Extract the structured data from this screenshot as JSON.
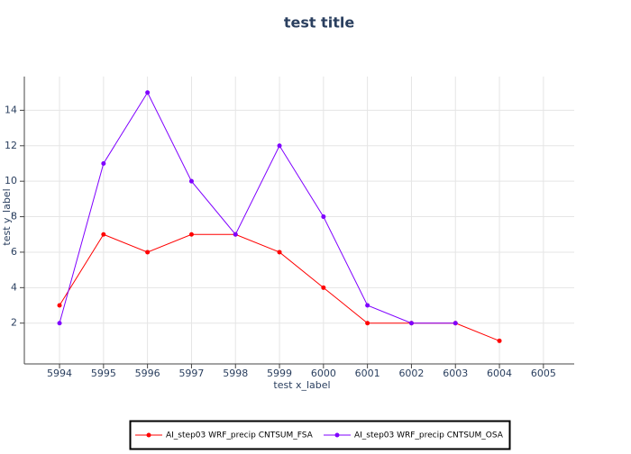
{
  "chart_data": {
    "type": "line",
    "title": "test title",
    "x_label": "test x_label",
    "y_label": "test y_label",
    "x": [
      5994,
      5995,
      5996,
      5997,
      5998,
      5999,
      6000,
      6001,
      6002,
      6003,
      6004
    ],
    "series": [
      {
        "name": "AI_step03 WRF_precip CNTSUM_FSA",
        "color": "#ff0000",
        "values": [
          3,
          7,
          6,
          7,
          7,
          6,
          4,
          2,
          2,
          2,
          1
        ]
      },
      {
        "name": "AI_step03 WRF_precip CNTSUM_OSA",
        "color": "#7f00ff",
        "values": [
          2,
          11,
          15,
          10,
          7,
          12,
          8,
          3,
          2,
          2,
          null
        ]
      }
    ],
    "xlim": [
      5993.2,
      6005.7
    ],
    "xticks": [
      5994,
      5995,
      5996,
      5997,
      5998,
      5999,
      6000,
      6001,
      6002,
      6003,
      6004,
      6005
    ],
    "ylim": [
      -0.3,
      15.9
    ],
    "yticks": [
      2,
      4,
      6,
      8,
      10,
      12,
      14
    ],
    "grid": true,
    "legend": "bottom"
  }
}
